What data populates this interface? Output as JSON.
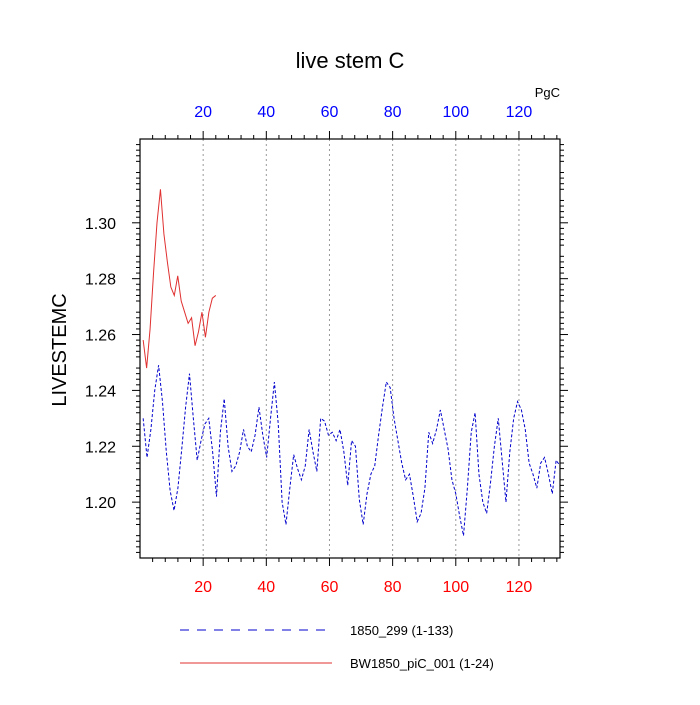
{
  "chart_data": {
    "type": "line",
    "title": "live stem C",
    "units": "PgC",
    "ylabel": "LIVESTEMC",
    "xlabel": "",
    "xlim": [
      0,
      133
    ],
    "ylim": [
      1.18,
      1.33
    ],
    "x_ticks": [
      20,
      40,
      60,
      80,
      100,
      120
    ],
    "y_ticks": [
      1.2,
      1.22,
      1.24,
      1.26,
      1.28,
      1.3
    ],
    "y_tick_labels": [
      "1.20",
      "1.22",
      "1.24",
      "1.26",
      "1.28",
      "1.30"
    ],
    "grid": "vertical dotted",
    "colors": {
      "bottom_ticks": "#ff0000",
      "top_ticks": "#0000ff",
      "series_1850": "#0000cc",
      "series_bw1850": "#e03030"
    },
    "series": [
      {
        "name": "1850_299 (1-133)",
        "style": "dashed",
        "color": "#0000cc",
        "values": [
          1.23,
          1.216,
          1.226,
          1.24,
          1.249,
          1.236,
          1.218,
          1.204,
          1.197,
          1.205,
          1.219,
          1.234,
          1.246,
          1.23,
          1.215,
          1.222,
          1.228,
          1.23,
          1.218,
          1.202,
          1.225,
          1.237,
          1.22,
          1.211,
          1.213,
          1.218,
          1.226,
          1.22,
          1.218,
          1.224,
          1.234,
          1.224,
          1.216,
          1.23,
          1.243,
          1.228,
          1.2,
          1.192,
          1.205,
          1.217,
          1.212,
          1.208,
          1.213,
          1.226,
          1.218,
          1.211,
          1.23,
          1.229,
          1.224,
          1.225,
          1.222,
          1.226,
          1.218,
          1.206,
          1.222,
          1.22,
          1.201,
          1.192,
          1.203,
          1.21,
          1.213,
          1.224,
          1.234,
          1.243,
          1.241,
          1.23,
          1.222,
          1.214,
          1.208,
          1.21,
          1.202,
          1.193,
          1.196,
          1.205,
          1.225,
          1.221,
          1.226,
          1.233,
          1.226,
          1.219,
          1.208,
          1.203,
          1.195,
          1.188,
          1.205,
          1.225,
          1.232,
          1.21,
          1.2,
          1.196,
          1.207,
          1.22,
          1.23,
          1.215,
          1.2,
          1.218,
          1.23,
          1.236,
          1.233,
          1.226,
          1.214,
          1.21,
          1.205,
          1.214,
          1.216,
          1.21,
          1.203,
          1.215,
          1.213
        ]
      },
      {
        "name": "BW1850_piC_001 (1-24)",
        "style": "solid",
        "color": "#e03030",
        "values": [
          1.258,
          1.248,
          1.262,
          1.282,
          1.3,
          1.312,
          1.296,
          1.286,
          1.277,
          1.274,
          1.281,
          1.272,
          1.268,
          1.264,
          1.266,
          1.256,
          1.261,
          1.268,
          1.259,
          1.268,
          1.273,
          1.274
        ]
      }
    ],
    "legend": {
      "position": "bottom",
      "entries": [
        "1850_299 (1-133)",
        "BW1850_piC_001 (1-24)"
      ]
    }
  }
}
